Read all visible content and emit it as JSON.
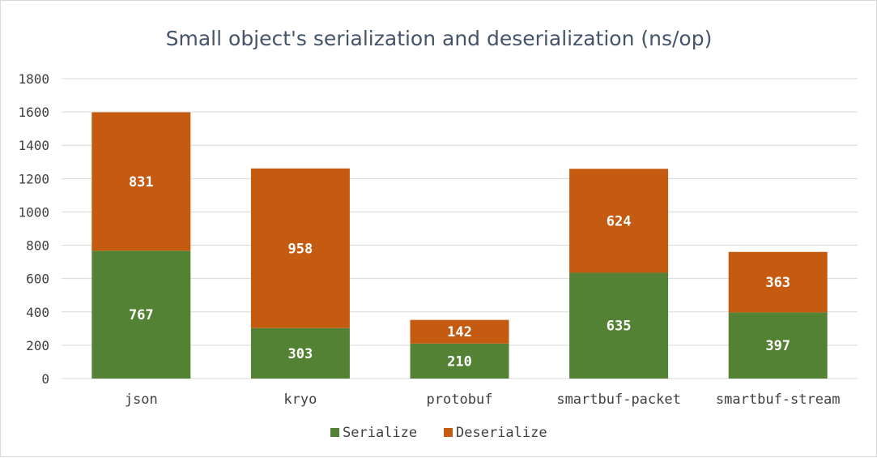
{
  "chart_data": {
    "type": "bar",
    "stacked": true,
    "title": "Small object's serialization and deserialization (ns/op)",
    "categories": [
      "json",
      "kryo",
      "protobuf",
      "smartbuf-packet",
      "smartbuf-stream"
    ],
    "series": [
      {
        "name": "Serialize",
        "color": "#548235",
        "values": [
          767,
          303,
          210,
          635,
          397
        ]
      },
      {
        "name": "Deserialize",
        "color": "#c55a11",
        "values": [
          831,
          958,
          142,
          624,
          363
        ]
      }
    ],
    "yticks": [
      "0",
      "200",
      "400",
      "600",
      "800",
      "1000",
      "1200",
      "1400",
      "1600",
      "1800"
    ],
    "ylim": [
      0,
      1800
    ],
    "grid": true,
    "legend_position": "bottom",
    "gridline_color": "#d9d9d9"
  }
}
